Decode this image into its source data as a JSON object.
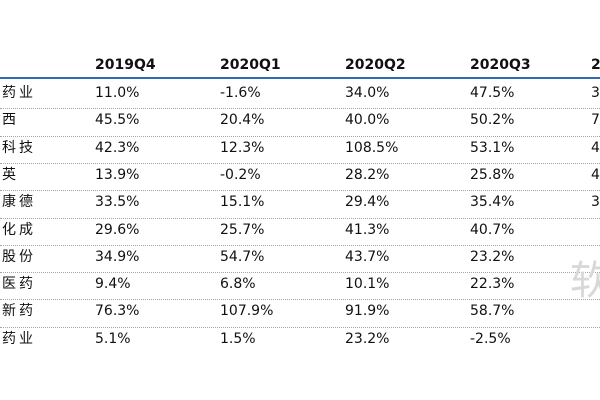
{
  "table": {
    "header": [
      "2019Q4",
      "2020Q1",
      "2020Q2",
      "2020Q3",
      "2"
    ],
    "rows": [
      [
        "药业",
        "11.0%",
        "-1.6%",
        "34.0%",
        "47.5%",
        "3"
      ],
      [
        "西",
        "45.5%",
        "20.4%",
        "40.0%",
        "50.2%",
        "7"
      ],
      [
        "科技",
        "42.3%",
        "12.3%",
        "108.5%",
        "53.1%",
        "4"
      ],
      [
        "英",
        "13.9%",
        "-0.2%",
        "28.2%",
        "25.8%",
        "4"
      ],
      [
        "康德",
        "33.5%",
        "15.1%",
        "29.4%",
        "35.4%",
        "3"
      ],
      [
        "化成",
        "29.6%",
        "25.7%",
        "41.3%",
        "40.7%"
      ],
      [
        "股份",
        "34.9%",
        "54.7%",
        "43.7%",
        "23.2%"
      ],
      [
        "医药",
        "9.4%",
        "6.8%",
        "10.1%",
        "22.3%"
      ],
      [
        "新药",
        "76.3%",
        "107.9%",
        "91.9%",
        "58.7%"
      ],
      [
        "药业",
        "5.1%",
        "1.5%",
        "23.2%",
        "-2.5%"
      ]
    ]
  },
  "watermark": "软"
}
